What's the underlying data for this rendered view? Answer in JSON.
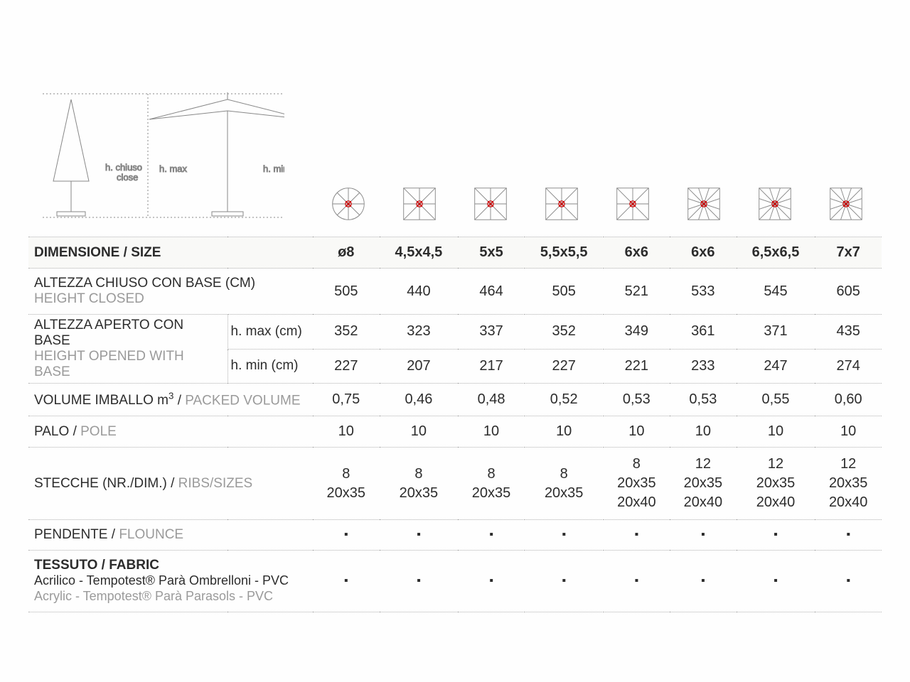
{
  "diagram": {
    "h_chiuso": "h. chiuso",
    "close": "close",
    "h_max": "h. max",
    "h_min": "h. min"
  },
  "icons": [
    {
      "shape": "circle",
      "ribs": 8
    },
    {
      "shape": "square",
      "ribs": 8
    },
    {
      "shape": "square",
      "ribs": 8
    },
    {
      "shape": "square",
      "ribs": 8
    },
    {
      "shape": "square",
      "ribs": 8
    },
    {
      "shape": "square",
      "ribs": 12
    },
    {
      "shape": "square",
      "ribs": 12
    },
    {
      "shape": "square",
      "ribs": 12
    }
  ],
  "header": {
    "label_it": "DIMENSIONE",
    "label_en": "SIZE",
    "sizes": [
      "ø8",
      "4,5x4,5",
      "5x5",
      "5,5x5,5",
      "6x6",
      "6x6",
      "6,5x6,5",
      "7x7"
    ]
  },
  "rows": {
    "height_closed": {
      "it": "ALTEZZA CHIUSO CON BASE (CM)",
      "en": "HEIGHT CLOSED",
      "values": [
        "505",
        "440",
        "464",
        "505",
        "521",
        "533",
        "545",
        "605"
      ]
    },
    "height_opened": {
      "it": "ALTEZZA APERTO CON BASE",
      "en": "HEIGHT OPENED WITH BASE",
      "sub1": "h. max (cm)",
      "sub2": "h. min (cm)",
      "values_max": [
        "352",
        "323",
        "337",
        "352",
        "349",
        "361",
        "371",
        "435"
      ],
      "values_min": [
        "227",
        "207",
        "217",
        "227",
        "221",
        "233",
        "247",
        "274"
      ]
    },
    "volume": {
      "it": "VOLUME IMBALLO m³",
      "en": "PACKED VOLUME",
      "values": [
        "0,75",
        "0,46",
        "0,48",
        "0,52",
        "0,53",
        "0,53",
        "0,55",
        "0,60"
      ]
    },
    "pole": {
      "it": "PALO",
      "en": "POLE",
      "values": [
        "10",
        "10",
        "10",
        "10",
        "10",
        "10",
        "10",
        "10"
      ]
    },
    "ribs": {
      "it": "STECCHE (NR./DIM.)",
      "en": "RIBS/SIZES",
      "values": [
        "8\n20x35",
        "8\n20x35",
        "8\n20x35",
        "8\n20x35",
        "8\n20x35\n20x40",
        "12\n20x35\n20x40",
        "12\n20x35\n20x40",
        "12\n20x35\n20x40"
      ]
    },
    "flounce": {
      "it": "PENDENTE",
      "en": "FLOUNCE",
      "values": [
        "▪",
        "▪",
        "▪",
        "▪",
        "▪",
        "▪",
        "▪",
        "▪"
      ]
    },
    "fabric": {
      "it": "TESSUTO",
      "en": "FABRIC",
      "sub_it": "Acrilico - Tempotest® Parà Ombrelloni - PVC",
      "sub_en": "Acrylic - Tempotest® Parà Parasols - PVC",
      "values": [
        "▪",
        "▪",
        "▪",
        "▪",
        "▪",
        "▪",
        "▪",
        "▪"
      ]
    }
  },
  "colors": {
    "text": "#2c2c2c",
    "muted": "#9a9a9a",
    "border": "#b0b0b0",
    "icon_stroke": "#888888",
    "accent": "#c00000",
    "bg": "#fefefe"
  }
}
